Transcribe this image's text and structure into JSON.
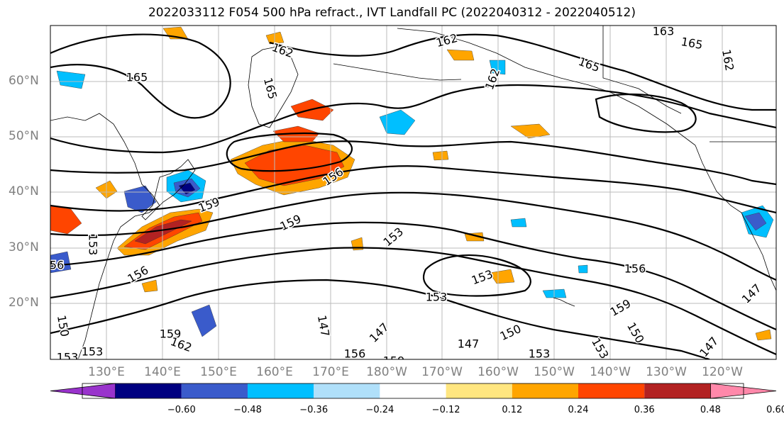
{
  "title": "2022033112 F054 500 hPa refract., IVT Landfall PC (2022040312 - 2022040512)",
  "lat_labels": [
    "60°N",
    "50°N",
    "40°N",
    "30°N",
    "20°N"
  ],
  "lon_labels": [
    "130°E",
    "140°E",
    "150°E",
    "160°E",
    "170°E",
    "180°W",
    "170°W",
    "160°W",
    "150°W",
    "140°W",
    "130°W",
    "120°W"
  ],
  "contour_labels": [
    "165",
    "162",
    "162",
    "165",
    "162",
    "163",
    "165",
    "162",
    "165",
    "156",
    "159",
    "159",
    "153",
    "153",
    "153",
    "156",
    "156",
    "156",
    "153",
    "153",
    "147",
    "147",
    "147",
    "150",
    "159",
    "150",
    "153",
    "147",
    "156",
    "159",
    "147",
    "159",
    "162",
    "150",
    "153",
    "153"
  ],
  "colorbar": {
    "ticks": [
      "−0.60",
      "−0.48",
      "−0.36",
      "−0.24",
      "−0.12",
      "0.12",
      "0.24",
      "0.36",
      "0.48",
      "0.60"
    ],
    "colors": [
      "#9933cc",
      "#000080",
      "#3a5bcb",
      "#00bfff",
      "#b0e0fa",
      "#ffffff",
      "#ffe680",
      "#ffa500",
      "#ff4500",
      "#b22222",
      "#ff88aa"
    ]
  }
}
